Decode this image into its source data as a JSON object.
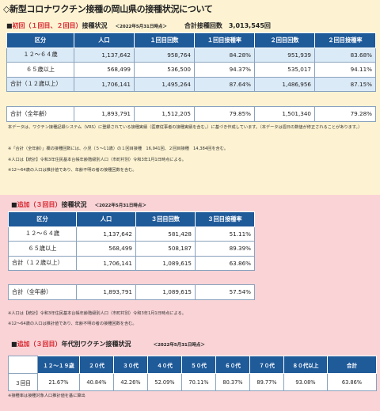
{
  "page_title": "◇新型コロナワクチン接種の岡山県の接種状況について",
  "section1": {
    "marker": "■",
    "title_red": "初回（１回目、２回目）",
    "title_rest": "接種状況",
    "date": "＜2022年5月31日時点＞",
    "total_label": "合計接種回数",
    "total_value": "3,013,545回",
    "headers": [
      "区分",
      "人口",
      "１回目回数",
      "１回目接種率",
      "２回目回数",
      "２回目接種率"
    ],
    "rows": [
      [
        "１２～６４歳",
        "1,137,642",
        "958,764",
        "84.28%",
        "951,939",
        "83.68%"
      ],
      [
        "６５歳以上",
        "568,499",
        "536,500",
        "94.37%",
        "535,017",
        "94.11%"
      ],
      [
        "合計（１２歳以上）",
        "1,706,141",
        "1,495,264",
        "87.64%",
        "1,486,956",
        "87.15%"
      ]
    ],
    "total_row": [
      "合計（全年齢）",
      "1,893,791",
      "1,512,205",
      "79.85%",
      "1,501,340",
      "79.28%"
    ],
    "notes": [
      "本データは、ワクチン接種記録システム（VRS）に登録されている接種実績（医療従事者の接種実績を含む。）に基づき作成しています。（本データは週日の数値が修正されることがあります。）",
      "※「合計（全年齢）」欄の接種回数には、小児（５～11歳）の１回目接種　16,941回、２回目接種　14,384回を含む。",
      "※人口は【統計】令和3年住民基本台帳年齢階級別人口（市町村別）令和3年1月1日時点による。",
      "※12～64歳の人口は推計値であり、年齢不明の者の接種回数を含む。"
    ]
  },
  "section2": {
    "marker": "■",
    "title_red": "追加（３回目）",
    "title_rest": "接種状況",
    "date": "＜2022年5月31日時点＞",
    "headers": [
      "区分",
      "人口",
      "３回目回数",
      "３回目接種率"
    ],
    "rows": [
      [
        "１２～６４歳",
        "1,137,642",
        "581,428",
        "51.11%"
      ],
      [
        "６５歳以上",
        "568,499",
        "508,187",
        "89.39%"
      ],
      [
        "合計（１２歳以上）",
        "1,706,141",
        "1,089,615",
        "63.86%"
      ]
    ],
    "total_row": [
      "合計（全年齢）",
      "1,893,791",
      "1,089,615",
      "57.54%"
    ],
    "notes": [
      "※人口は【統計】令和3年住民基本台帳年齢階級別人口（市町村別）令和3年1月1日時点による。",
      "※12～64歳の人口は推計値であり、年齢不明の者の接種回数を含む。"
    ]
  },
  "section3": {
    "marker": "■",
    "title_red": "追加（３回目）",
    "title_rest": "年代別ワクチン接種状況",
    "date": "＜2022年5月31日時点＞",
    "headers": [
      "",
      "１２～１９歳",
      "２０代",
      "３０代",
      "４０代",
      "５０代",
      "６０代",
      "７０代",
      "８０代以上",
      "合計"
    ],
    "row": [
      "３回目",
      "21.67%",
      "40.84%",
      "42.26%",
      "52.09%",
      "70.11%",
      "80.37%",
      "89.77%",
      "93.08%",
      "63.86%"
    ],
    "note": "※接種率は接種対象人口推計値を基に算出"
  }
}
